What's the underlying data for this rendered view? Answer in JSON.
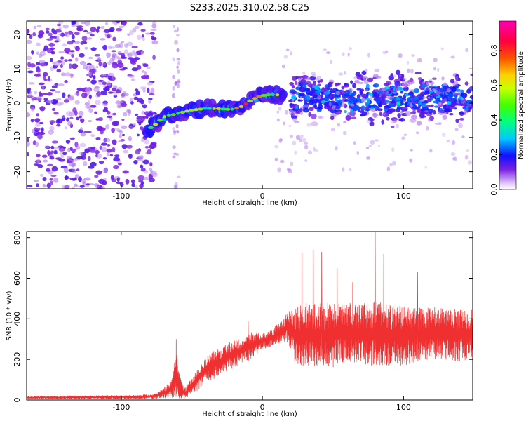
{
  "title": "S233.2025.310.02.58.C25",
  "spectrogram": {
    "type": "heatmap",
    "xlabel": "Height of straight line (km)",
    "ylabel": "Frequency (Hz)",
    "xlim": [
      -167,
      149
    ],
    "ylim": [
      -25,
      24
    ],
    "xticks": [
      -100,
      0,
      100
    ],
    "yticks": [
      -20,
      -10,
      0,
      10,
      20
    ],
    "colorbar": {
      "label": "Normalized spectral amplitude",
      "range": [
        0,
        0.97
      ],
      "ticks": [
        0.0,
        0.2,
        0.4,
        0.6,
        0.8
      ],
      "tick_labels": [
        "0.0",
        "0.2",
        "0.4",
        "0.6",
        "0.8"
      ],
      "colormap": "rainbow"
    },
    "ridge": {
      "x": [
        -82,
        -75,
        -70,
        -65,
        -60,
        -55,
        -50,
        -45,
        -40,
        -35,
        -30,
        -25,
        -20,
        -15,
        -10,
        -5,
        0,
        5,
        10,
        15
      ],
      "y": [
        -8,
        -6,
        -4,
        -3.5,
        -3,
        -2.5,
        -2,
        -1.8,
        -1.5,
        -1.6,
        -1.6,
        -1.8,
        -1.7,
        -1,
        0.3,
        1.5,
        2.2,
        2.5,
        2.5,
        2
      ]
    },
    "regions": [
      {
        "x_range": [
          -167,
          -76
        ],
        "y_range": [
          -25,
          24
        ],
        "level": 0.2,
        "pattern": "broadband noise"
      },
      {
        "x_range": [
          20,
          149
        ],
        "y_range": [
          -12,
          15
        ],
        "level": 0.3,
        "pattern": "scattered energy"
      }
    ]
  },
  "snr": {
    "type": "line",
    "xlabel": "Height of straight line (km)",
    "ylabel": "SNR (10 * v/v)",
    "xlim": [
      -167,
      149
    ],
    "ylim": [
      0,
      830
    ],
    "xticks": [
      -100,
      0,
      100
    ],
    "yticks": [
      0,
      200,
      400,
      600,
      800
    ],
    "color": "#f03030",
    "envelope": {
      "x": [
        -167,
        -90,
        -75,
        -68,
        -64,
        -61,
        -58,
        -55,
        -50,
        -45,
        -40,
        -35,
        -30,
        -25,
        -20,
        -15,
        -10,
        -5,
        0,
        5,
        10,
        15,
        18,
        22,
        25,
        30,
        40,
        50,
        60,
        70,
        80,
        90,
        100,
        110,
        120,
        130,
        140,
        149
      ],
      "base": [
        12,
        14,
        20,
        40,
        60,
        120,
        60,
        30,
        70,
        110,
        150,
        170,
        190,
        210,
        230,
        240,
        260,
        280,
        290,
        300,
        320,
        340,
        360,
        330,
        320,
        320,
        320,
        320,
        330,
        330,
        320,
        320,
        320,
        320,
        330,
        320,
        320,
        330
      ],
      "amp": [
        8,
        10,
        15,
        30,
        50,
        120,
        50,
        30,
        40,
        60,
        60,
        70,
        70,
        70,
        70,
        60,
        70,
        60,
        40,
        40,
        50,
        60,
        80,
        130,
        150,
        160,
        160,
        160,
        150,
        150,
        170,
        150,
        150,
        140,
        130,
        130,
        130,
        130
      ],
      "peaks": [
        {
          "x": -61,
          "y": 300
        },
        {
          "x": -10,
          "y": 390
        },
        {
          "x": 28,
          "y": 730
        },
        {
          "x": 36,
          "y": 740
        },
        {
          "x": 42,
          "y": 730
        },
        {
          "x": 53,
          "y": 650
        },
        {
          "x": 64,
          "y": 580
        },
        {
          "x": 80,
          "y": 830
        },
        {
          "x": 86,
          "y": 720
        },
        {
          "x": 110,
          "y": 630
        }
      ]
    }
  }
}
